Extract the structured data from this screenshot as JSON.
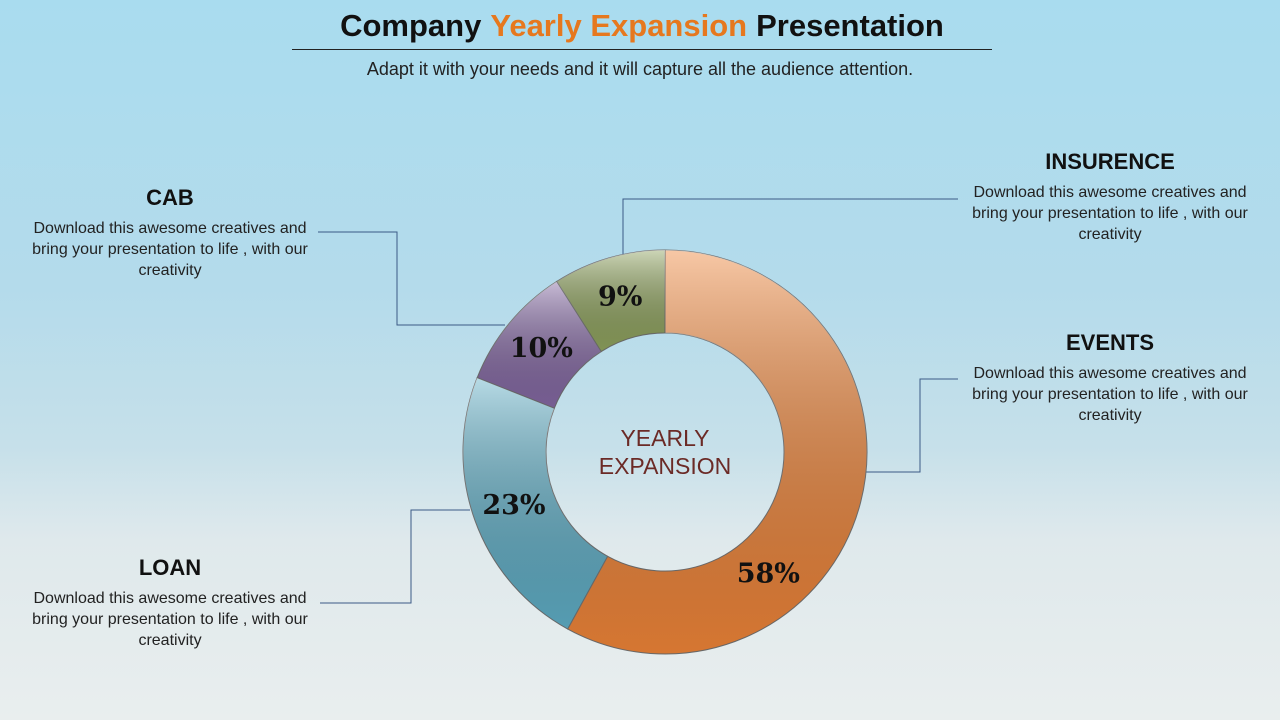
{
  "title_parts": [
    "Company",
    "Yearly Expansion",
    "Presentation"
  ],
  "subtitle": "Adapt it with your needs and it will capture all the audience attention.",
  "chart_data": {
    "type": "pie",
    "center_label": "YEARLY EXPANSION",
    "categories": [
      "EVENTS",
      "LOAN",
      "CAB",
      "INSURENCE"
    ],
    "values": [
      58,
      23,
      10,
      9
    ],
    "value_labels": [
      "58%",
      "23%",
      "10%",
      "9%"
    ],
    "colors": [
      "#ee8438",
      "#5faec6",
      "#8468a3",
      "#8fa35e"
    ],
    "descriptions": [
      "Download this awesome creatives and bring your presentation to life , with our creativity",
      "Download this awesome creatives and bring your presentation to life , with our creativity",
      "Download this awesome creatives and bring your presentation to life , with our creativity",
      "Download this awesome creatives and bring your presentation to life , with our creativity"
    ]
  }
}
